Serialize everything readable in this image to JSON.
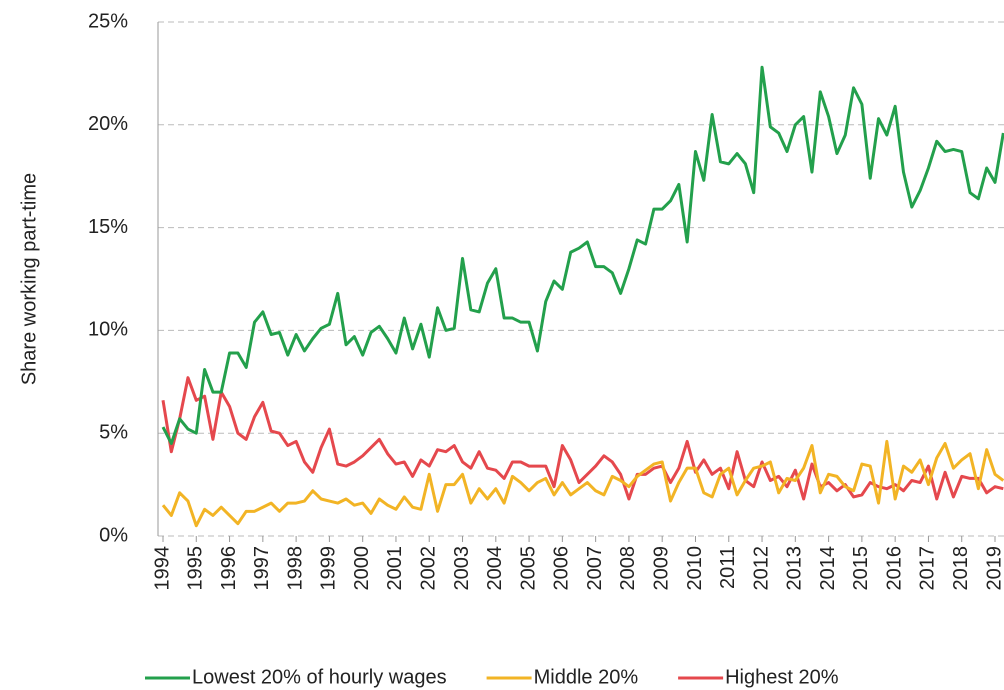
{
  "chart_data": {
    "type": "line",
    "y_label": "Share working part-time",
    "categories": [
      "1994",
      null,
      null,
      null,
      "1995",
      null,
      null,
      null,
      "1996",
      null,
      null,
      null,
      "1997",
      null,
      null,
      null,
      "1998",
      null,
      null,
      null,
      "1999",
      null,
      null,
      null,
      "2000",
      null,
      null,
      null,
      "2001",
      null,
      null,
      null,
      "2002",
      null,
      null,
      null,
      "2003",
      null,
      null,
      null,
      "2004",
      null,
      null,
      null,
      "2005",
      null,
      null,
      null,
      "2006",
      null,
      null,
      null,
      "2007",
      null,
      null,
      null,
      "2008",
      null,
      null,
      null,
      "2009",
      null,
      null,
      null,
      "2010",
      null,
      null,
      null,
      "2011",
      null,
      null,
      null,
      "2012",
      null,
      null,
      null,
      "2013",
      null,
      null,
      null,
      "2014",
      null,
      null,
      null,
      "2015",
      null,
      null,
      null,
      "2016",
      null,
      null,
      null,
      "2017",
      null,
      null,
      null,
      "2018",
      null,
      null,
      null,
      "2019",
      null
    ],
    "series": [
      {
        "name": "Lowest 20% of hourly wages",
        "color": "#23a04c",
        "values": [
          5.3,
          4.5,
          5.7,
          5.2,
          5.0,
          8.1,
          7.0,
          7.0,
          8.9,
          8.9,
          8.2,
          10.4,
          10.9,
          9.8,
          9.9,
          8.8,
          9.8,
          9.0,
          9.6,
          10.1,
          10.3,
          11.8,
          9.3,
          9.7,
          8.8,
          9.9,
          10.2,
          9.6,
          8.9,
          10.6,
          9.1,
          10.3,
          8.7,
          11.1,
          10.0,
          10.1,
          13.5,
          11.0,
          10.9,
          12.3,
          13.0,
          10.6,
          10.6,
          10.4,
          10.4,
          9.0,
          11.4,
          12.4,
          12.0,
          13.8,
          14.0,
          14.3,
          13.1,
          13.1,
          12.8,
          11.8,
          13.0,
          14.4,
          14.2,
          15.9,
          15.9,
          16.3,
          17.1,
          14.3,
          18.7,
          17.3,
          20.5,
          18.2,
          18.1,
          18.6,
          18.1,
          16.7,
          22.8,
          19.9,
          19.6,
          18.7,
          20.0,
          20.4,
          17.7,
          21.6,
          20.4,
          18.6,
          19.5,
          21.8,
          21.0,
          17.4,
          20.3,
          19.5,
          20.9,
          17.7,
          16.0,
          16.8,
          17.9,
          19.2,
          18.7,
          18.8,
          18.7,
          16.7,
          16.4,
          17.9,
          17.2,
          19.6
        ]
      },
      {
        "name": "Middle 20%",
        "color": "#f2b425",
        "values": [
          1.5,
          1.0,
          2.1,
          1.7,
          0.5,
          1.3,
          1.0,
          1.4,
          1.0,
          0.6,
          1.2,
          1.2,
          1.4,
          1.6,
          1.2,
          1.6,
          1.6,
          1.7,
          2.2,
          1.8,
          1.7,
          1.6,
          1.8,
          1.5,
          1.6,
          1.1,
          1.8,
          1.5,
          1.3,
          1.9,
          1.4,
          1.3,
          3.0,
          1.2,
          2.5,
          2.5,
          3.0,
          1.6,
          2.3,
          1.8,
          2.3,
          1.6,
          2.9,
          2.6,
          2.2,
          2.6,
          2.8,
          2.0,
          2.6,
          2.0,
          2.3,
          2.6,
          2.2,
          2.0,
          2.9,
          2.7,
          2.4,
          2.9,
          3.2,
          3.5,
          3.6,
          1.7,
          2.6,
          3.3,
          3.3,
          2.1,
          1.9,
          3.0,
          3.3,
          2.0,
          2.7,
          3.3,
          3.4,
          3.6,
          2.1,
          2.8,
          2.7,
          3.3,
          4.4,
          2.1,
          3.0,
          2.9,
          2.4,
          2.2,
          3.5,
          3.4,
          1.6,
          4.6,
          1.8,
          3.4,
          3.1,
          3.7,
          2.5,
          3.8,
          4.5,
          3.3,
          3.7,
          4.0,
          2.3,
          4.2,
          3.0,
          2.7
        ]
      },
      {
        "name": "Highest 20%",
        "color": "#e5484d",
        "values": [
          6.6,
          4.1,
          5.7,
          7.7,
          6.6,
          6.8,
          4.7,
          7.0,
          6.3,
          5.0,
          4.7,
          5.8,
          6.5,
          5.1,
          5.0,
          4.4,
          4.6,
          3.6,
          3.1,
          4.3,
          5.2,
          3.5,
          3.4,
          3.6,
          3.9,
          4.3,
          4.7,
          4.0,
          3.5,
          3.6,
          2.9,
          3.7,
          3.4,
          4.2,
          4.1,
          4.4,
          3.6,
          3.3,
          4.1,
          3.3,
          3.2,
          2.8,
          3.6,
          3.6,
          3.4,
          3.4,
          3.4,
          2.4,
          4.4,
          3.7,
          2.6,
          3.0,
          3.4,
          3.9,
          3.6,
          3.0,
          1.8,
          3.0,
          3.0,
          3.3,
          3.4,
          2.6,
          3.3,
          4.6,
          3.1,
          3.7,
          3.0,
          3.3,
          2.3,
          4.1,
          2.7,
          2.4,
          3.6,
          2.7,
          2.9,
          2.4,
          3.2,
          1.8,
          3.5,
          2.4,
          2.6,
          2.2,
          2.5,
          1.9,
          2.0,
          2.6,
          2.4,
          2.3,
          2.5,
          2.2,
          2.7,
          2.6,
          3.4,
          1.8,
          3.1,
          1.9,
          2.9,
          2.8,
          2.8,
          2.1,
          2.4,
          2.3
        ]
      }
    ],
    "ylim": [
      0,
      25
    ],
    "yticks": [
      {
        "value": 0,
        "label": "0%"
      },
      {
        "value": 5,
        "label": "5%"
      },
      {
        "value": 10,
        "label": "10%"
      },
      {
        "value": 15,
        "label": "15%"
      },
      {
        "value": 20,
        "label": "20%"
      },
      {
        "value": 25,
        "label": "25%"
      }
    ],
    "grid": true,
    "legend": "bottom"
  }
}
